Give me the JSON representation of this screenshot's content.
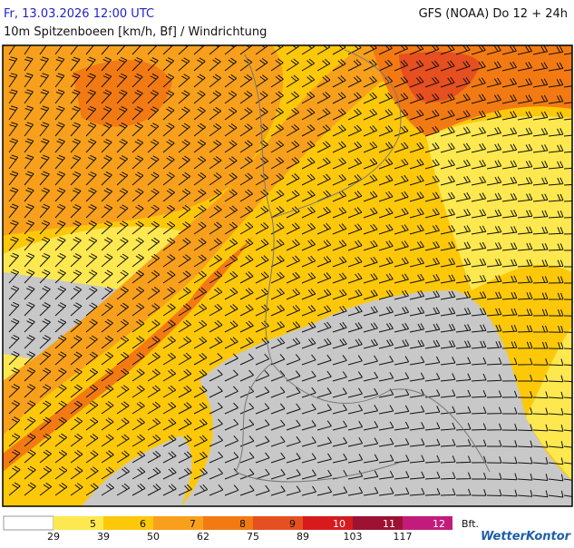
{
  "header": {
    "title": "Fr, 13.03.2026 12:00 UTC",
    "model": "GFS (NOAA) Do 12 + 24h",
    "subtitle": "10m Spitzenboeen [km/h, Bf] / Windrichtung"
  },
  "legend": {
    "classes": [
      {
        "bft": 5,
        "color": "#fde84f"
      },
      {
        "bft": 6,
        "color": "#fdc80a"
      },
      {
        "bft": 7,
        "color": "#f8a01c"
      },
      {
        "bft": 8,
        "color": "#f37a13"
      },
      {
        "bft": 9,
        "color": "#e64f1f"
      },
      {
        "bft": 10,
        "color": "#d71b1d"
      },
      {
        "bft": 11,
        "color": "#9d1232"
      },
      {
        "bft": 12,
        "color": "#c21b7c"
      }
    ],
    "thresholds": [
      29,
      39,
      50,
      62,
      75,
      89,
      103,
      117
    ],
    "unit": "Bft."
  },
  "logo": "WetterKontor"
}
